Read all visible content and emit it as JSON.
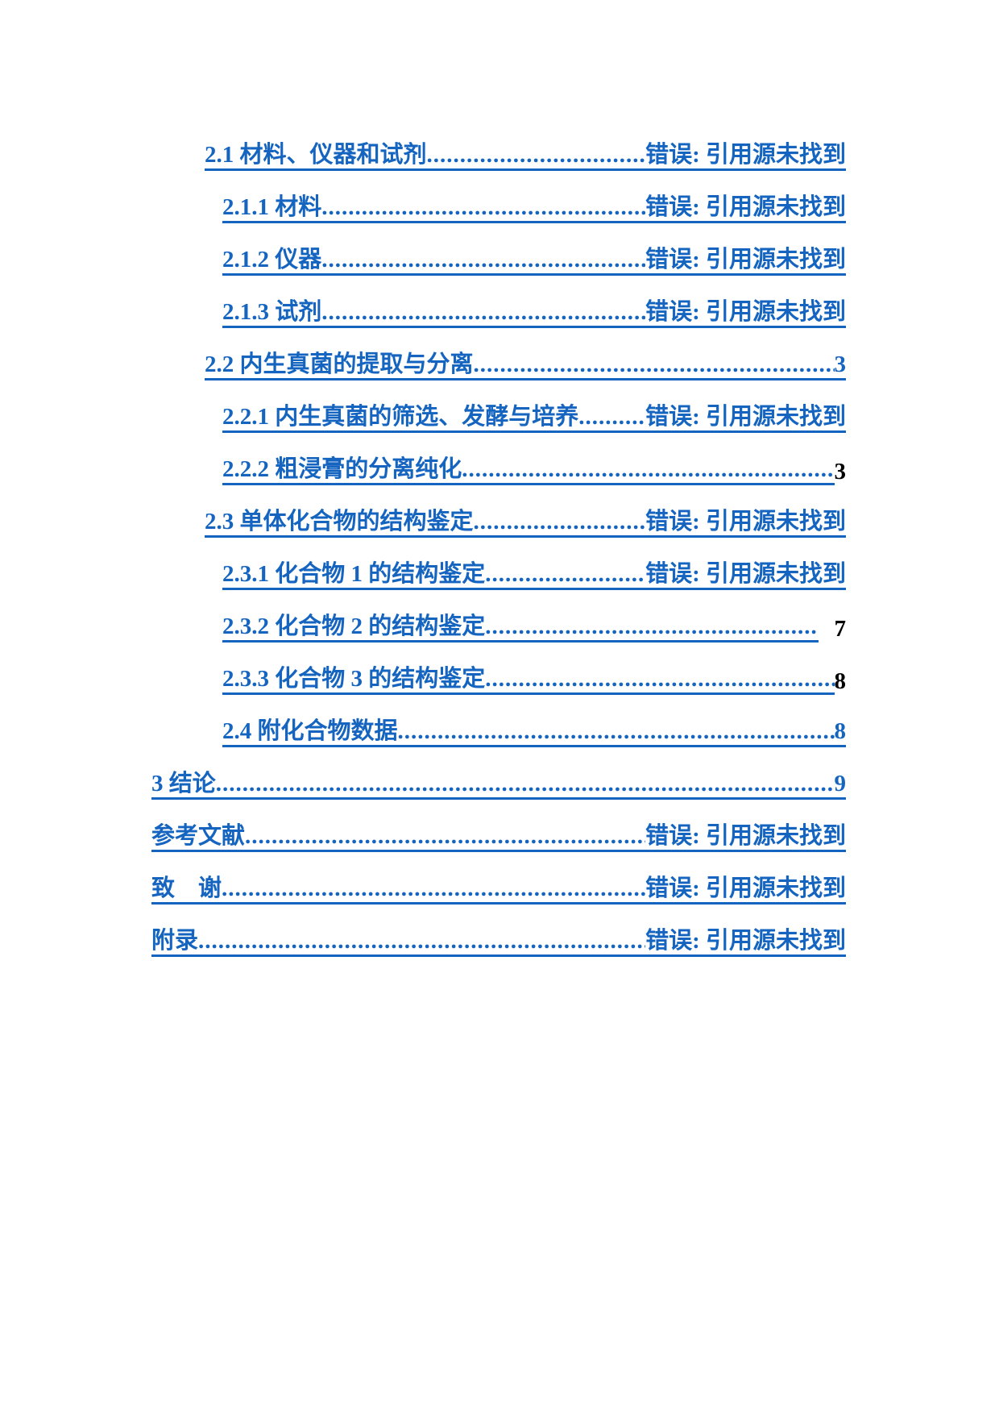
{
  "toc": [
    {
      "label": "2.1 材料、仪器和试剂",
      "page": "错误: 引用源未找到",
      "level": 2,
      "page_linked": true
    },
    {
      "label": "2.1.1 材料",
      "page": "错误: 引用源未找到",
      "level": 3,
      "page_linked": true
    },
    {
      "label": "2.1.2 仪器",
      "page": "错误: 引用源未找到",
      "level": 3,
      "page_linked": true
    },
    {
      "label": "2.1.3 试剂",
      "page": "错误: 引用源未找到",
      "level": 3,
      "page_linked": true
    },
    {
      "label": "2.2 内生真菌的提取与分离",
      "page": "3",
      "level": 2,
      "page_linked": true
    },
    {
      "label": "2.2.1 内生真菌的筛选、发酵与培养",
      "page": "错误: 引用源未找到",
      "level": 3,
      "page_linked": true
    },
    {
      "label": "2.2.2 粗浸膏的分离纯化",
      "page": "3",
      "level": 3,
      "page_linked": false
    },
    {
      "label": "2.3 单体化合物的结构鉴定",
      "page": "错误: 引用源未找到",
      "level": 2,
      "page_linked": true
    },
    {
      "label": "2.3.1 化合物 1 的结构鉴定",
      "page": "错误: 引用源未找到",
      "level": 3,
      "page_linked": true
    },
    {
      "label": "2.3.2 化合物 2 的结构鉴定",
      "page": "7",
      "level": 3,
      "page_linked": false,
      "gap": true
    },
    {
      "label": "2.3.3 化合物 3 的结构鉴定",
      "page": "8",
      "level": 3,
      "page_linked": false
    },
    {
      "label": "2.4 附化合物数据",
      "page": "8",
      "level": 3,
      "page_linked": true
    },
    {
      "label": "3 结论",
      "page": "9",
      "level": 1,
      "page_linked": true
    },
    {
      "label": "参考文献",
      "page": "错误: 引用源未找到",
      "level": 1,
      "page_linked": true
    },
    {
      "label": "致　谢",
      "page": "错误: 引用源未找到",
      "level": 1,
      "page_linked": true
    },
    {
      "label": "附录",
      "page": "错误: 引用源未找到",
      "level": 1,
      "page_linked": true
    }
  ],
  "colors": {
    "link": "#1565c0",
    "text": "#000000"
  }
}
